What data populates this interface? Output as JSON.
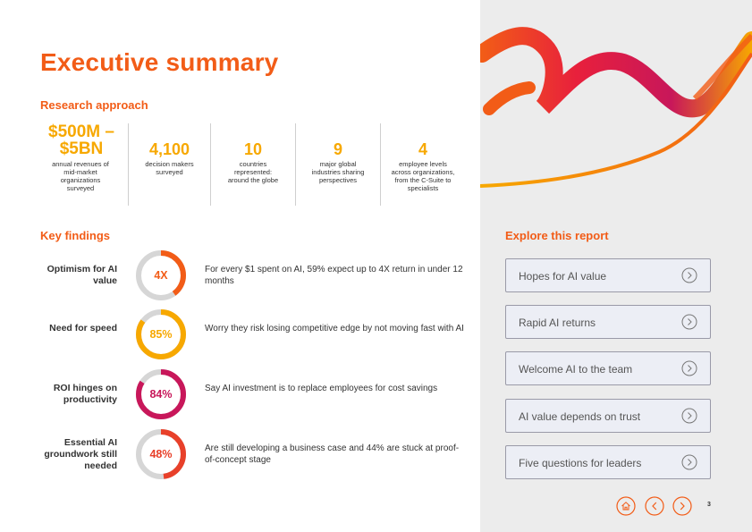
{
  "title": "Executive summary",
  "research": {
    "heading": "Research approach",
    "stats": [
      {
        "value": "$500M – $5BN",
        "desc": "annual revenues of mid-market organizations surveyed"
      },
      {
        "value": "4,100",
        "desc": "decision makers surveyed"
      },
      {
        "value": "10",
        "desc": "countries represented: around the globe"
      },
      {
        "value": "9",
        "desc": "major global industries sharing perspectives"
      },
      {
        "value": "4",
        "desc": "employee levels across organizations, from the C-Suite to specialists"
      }
    ]
  },
  "findings": {
    "heading": "Key findings",
    "items": [
      {
        "label": "Optimism for AI value",
        "value": "4X",
        "percent": 40,
        "color": "#f25c17",
        "desc": "For every $1 spent on AI, 59% expect up to 4X return in under 12 months"
      },
      {
        "label": "Need for speed",
        "value": "85%",
        "percent": 85,
        "color": "#f7a800",
        "desc": "Worry they risk losing competitive edge by not moving fast with AI"
      },
      {
        "label": "ROI hinges on productivity",
        "value": "84%",
        "percent": 84,
        "color": "#c8175a",
        "desc": "Say AI investment is to replace employees for cost savings"
      },
      {
        "label": "Essential AI groundwork still needed",
        "value": "48%",
        "percent": 48,
        "color": "#e8402a",
        "desc": "Are still developing a business case and 44% are stuck at proof-of-concept stage"
      }
    ]
  },
  "explore": {
    "heading": "Explore this report",
    "links": [
      "Hopes for AI value",
      "Rapid AI returns",
      "Welcome AI to the team",
      "AI value depends on trust",
      "Five questions for leaders"
    ]
  },
  "footer": {
    "icons": [
      "home-icon",
      "chevron-left-icon",
      "chevron-right-icon"
    ],
    "page_number": "3"
  },
  "colors": {
    "accent": "#f25c17",
    "stat": "#f7a800",
    "magenta": "#c8175a"
  }
}
